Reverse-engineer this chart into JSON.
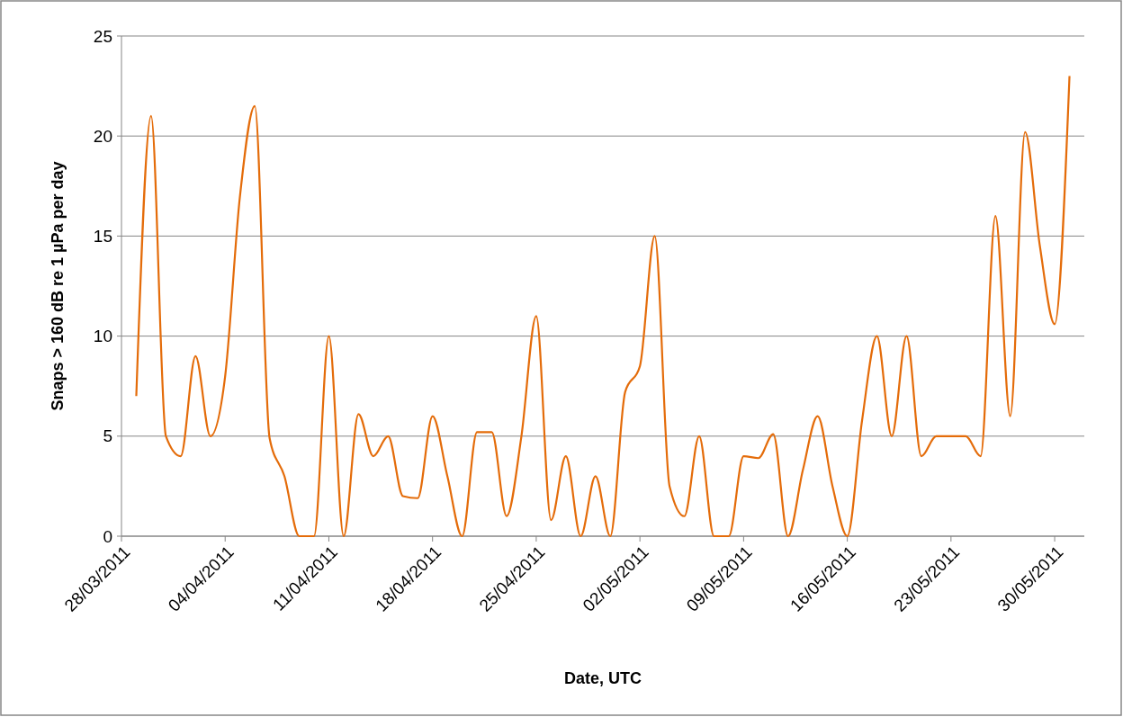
{
  "chart_data": {
    "type": "line",
    "xlabel": "Date, UTC",
    "ylabel": "Snaps > 160 dB re 1 µPa per day",
    "x": [
      "2011-03-29",
      "2011-03-30",
      "2011-03-31",
      "2011-04-01",
      "2011-04-02",
      "2011-04-03",
      "2011-04-04",
      "2011-04-05",
      "2011-04-06",
      "2011-04-07",
      "2011-04-08",
      "2011-04-09",
      "2011-04-10",
      "2011-04-11",
      "2011-04-12",
      "2011-04-13",
      "2011-04-14",
      "2011-04-15",
      "2011-04-16",
      "2011-04-17",
      "2011-04-18",
      "2011-04-19",
      "2011-04-20",
      "2011-04-21",
      "2011-04-22",
      "2011-04-23",
      "2011-04-24",
      "2011-04-25",
      "2011-04-26",
      "2011-04-27",
      "2011-04-28",
      "2011-04-29",
      "2011-04-30",
      "2011-05-01",
      "2011-05-02",
      "2011-05-03",
      "2011-05-04",
      "2011-05-05",
      "2011-05-06",
      "2011-05-07",
      "2011-05-08",
      "2011-05-09",
      "2011-05-10",
      "2011-05-11",
      "2011-05-12",
      "2011-05-13",
      "2011-05-14",
      "2011-05-15",
      "2011-05-16",
      "2011-05-17",
      "2011-05-18",
      "2011-05-19",
      "2011-05-20",
      "2011-05-21",
      "2011-05-22",
      "2011-05-23",
      "2011-05-24",
      "2011-05-25",
      "2011-05-26",
      "2011-05-27",
      "2011-05-28",
      "2011-05-29",
      "2011-05-30",
      "2011-05-31"
    ],
    "series": [
      {
        "color": "#e46c0a",
        "values": [
          7,
          21,
          5,
          4,
          9,
          5,
          8,
          17,
          21.5,
          4.9,
          3,
          0,
          0,
          10,
          0,
          6.1,
          4,
          5,
          2,
          1.9,
          6,
          3,
          0,
          5.2,
          5.2,
          1,
          5,
          11,
          0.8,
          4,
          0,
          3,
          0,
          7.2,
          8.5,
          15,
          2.5,
          1,
          5,
          0,
          0,
          4,
          3.9,
          5.1,
          0,
          3.3,
          6,
          2.5,
          0,
          5.8,
          10,
          5,
          10,
          4,
          5,
          5,
          5,
          4,
          16,
          6,
          20.2,
          14.5,
          10.6,
          23
        ]
      }
    ],
    "xlim": [
      "2011-03-28",
      "2011-06-01"
    ],
    "xticks": [
      {
        "value": "2011-03-28",
        "label": "28/03/2011"
      },
      {
        "value": "2011-04-04",
        "label": "04/04/2011"
      },
      {
        "value": "2011-04-11",
        "label": "11/04/2011"
      },
      {
        "value": "2011-04-18",
        "label": "18/04/2011"
      },
      {
        "value": "2011-04-25",
        "label": "25/04/2011"
      },
      {
        "value": "2011-05-02",
        "label": "02/05/2011"
      },
      {
        "value": "2011-05-09",
        "label": "09/05/2011"
      },
      {
        "value": "2011-05-16",
        "label": "16/05/2011"
      },
      {
        "value": "2011-05-23",
        "label": "23/05/2011"
      },
      {
        "value": "2011-05-30",
        "label": "30/05/2011"
      }
    ],
    "ylim": [
      0,
      25
    ],
    "yticks": [
      0,
      5,
      10,
      15,
      20,
      25
    ],
    "grid": "y",
    "marker": "none",
    "line_style": "solid"
  }
}
